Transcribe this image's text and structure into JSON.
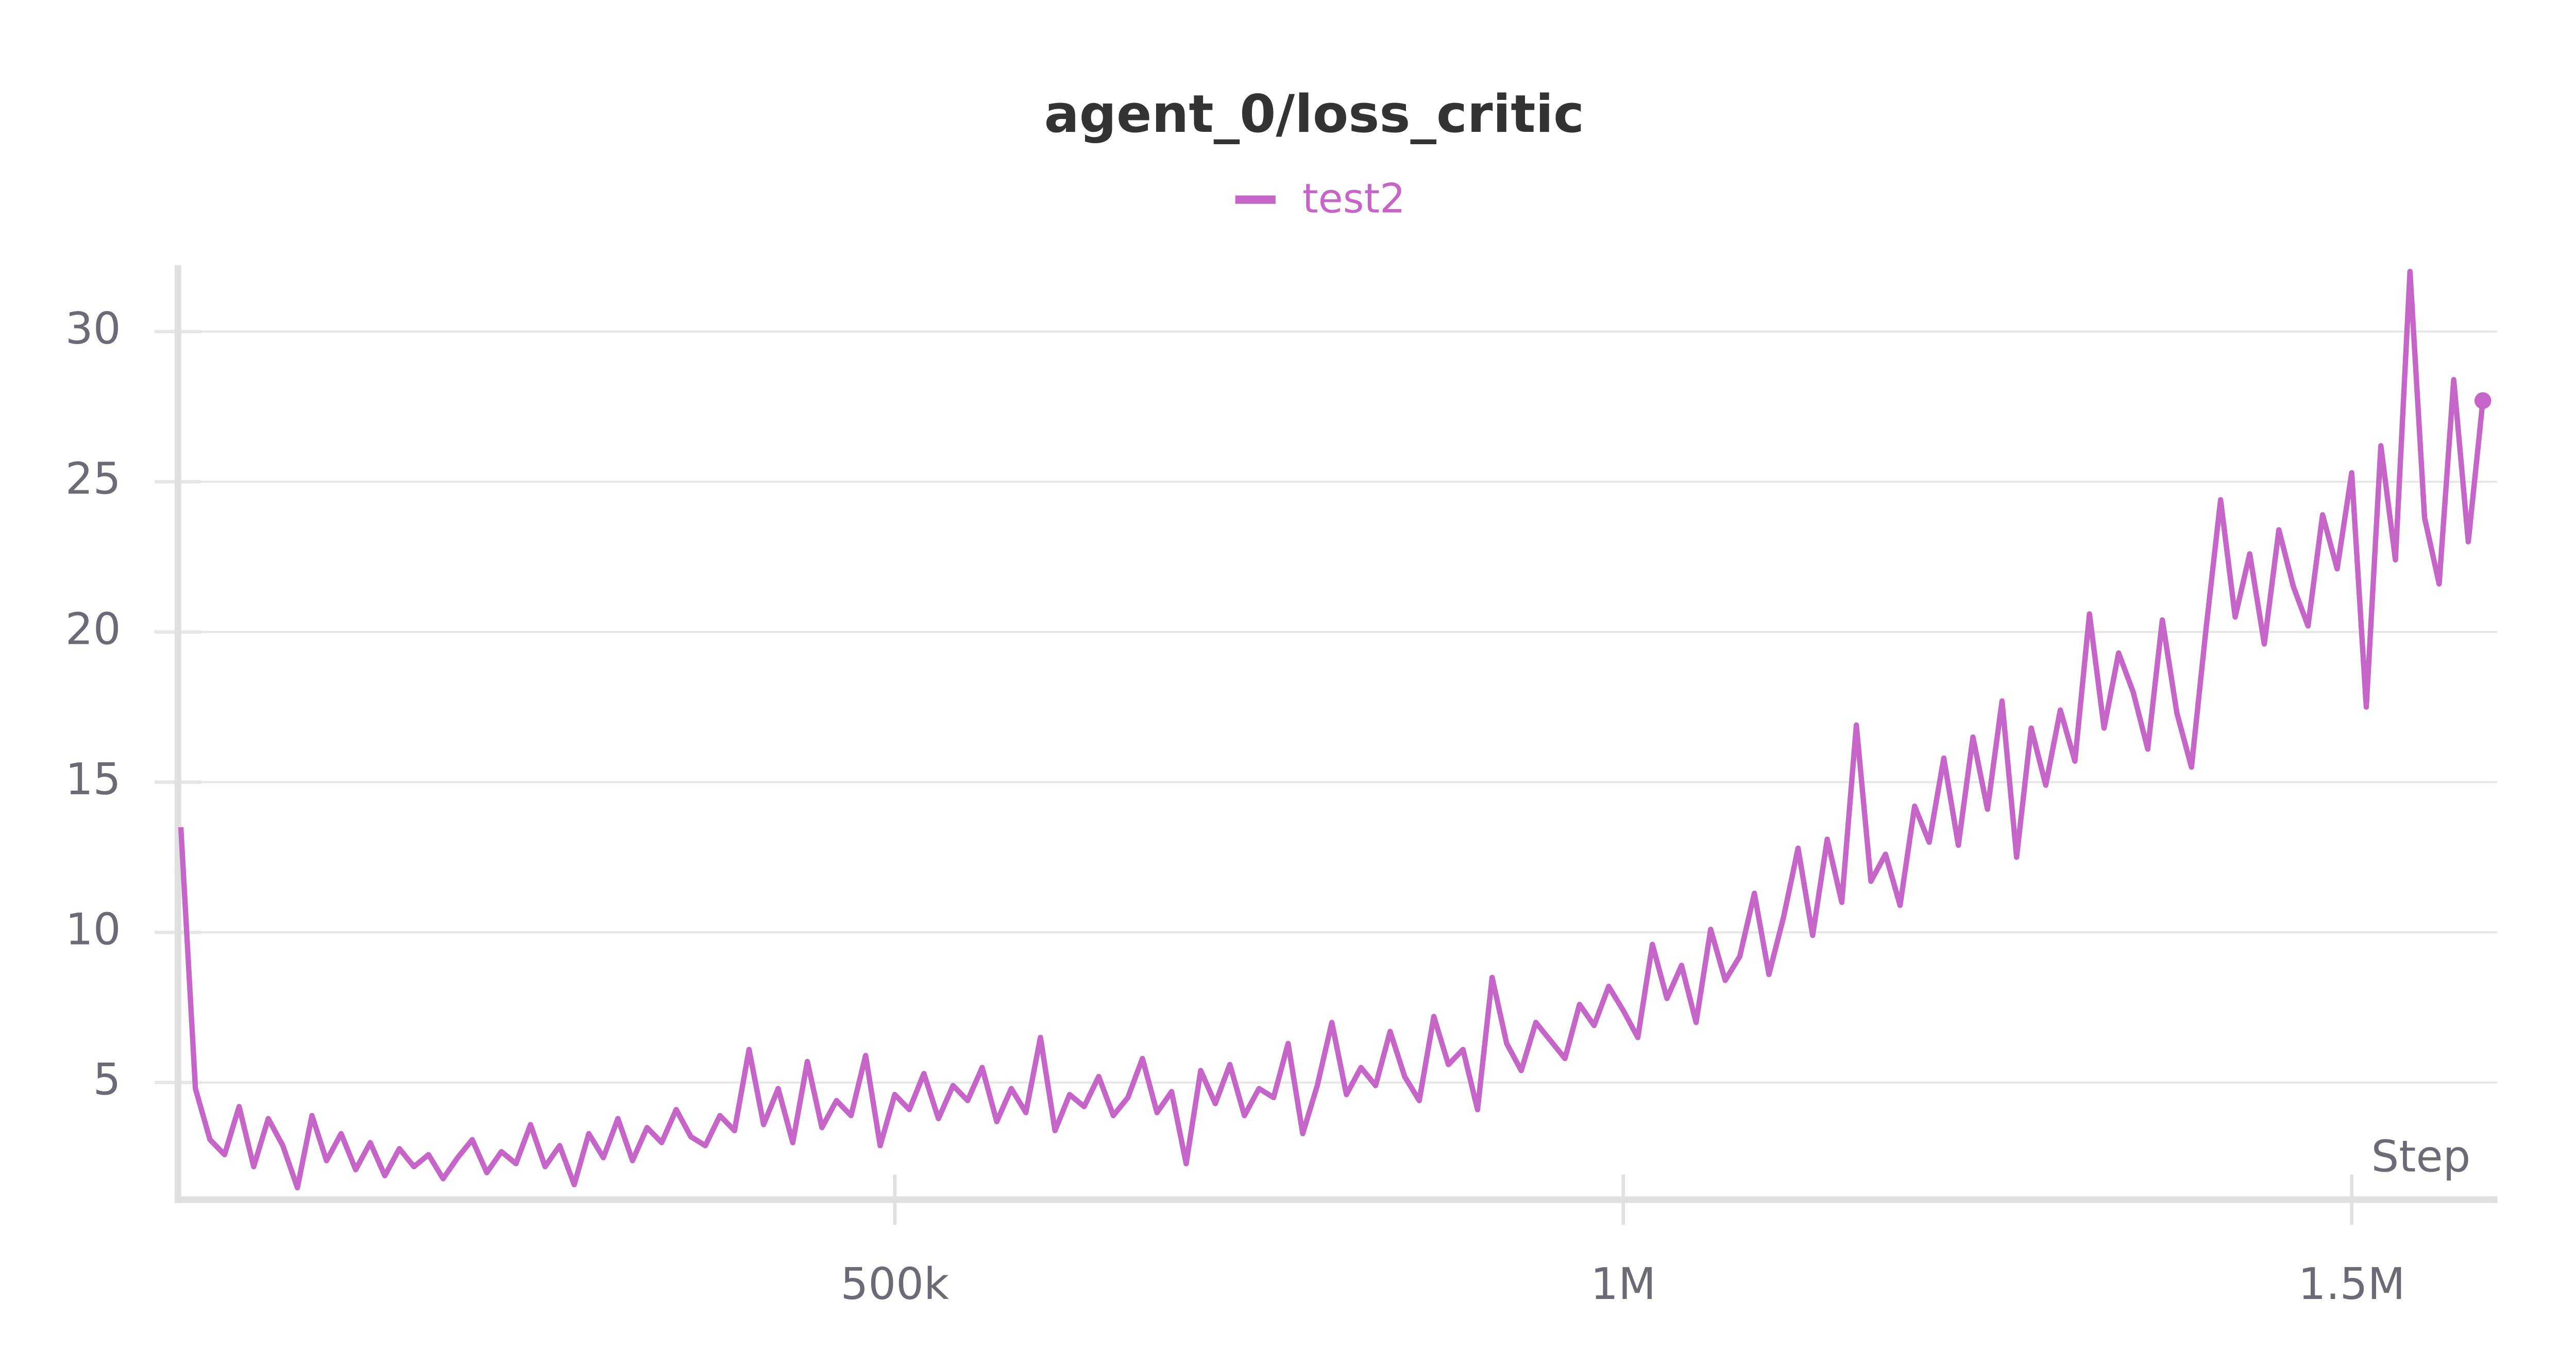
{
  "chart_data": {
    "type": "line",
    "title": "agent_0/loss_critic",
    "x_label": "Step",
    "x": [
      10000,
      20000,
      30000,
      40000,
      50000,
      60000,
      70000,
      80000,
      90000,
      100000,
      110000,
      120000,
      130000,
      140000,
      150000,
      160000,
      170000,
      180000,
      190000,
      200000,
      210000,
      220000,
      230000,
      240000,
      250000,
      260000,
      270000,
      280000,
      290000,
      300000,
      310000,
      320000,
      330000,
      340000,
      350000,
      360000,
      370000,
      380000,
      390000,
      400000,
      410000,
      420000,
      430000,
      440000,
      450000,
      460000,
      470000,
      480000,
      490000,
      500000,
      510000,
      520000,
      530000,
      540000,
      550000,
      560000,
      570000,
      580000,
      590000,
      600000,
      610000,
      620000,
      630000,
      640000,
      650000,
      660000,
      670000,
      680000,
      690000,
      700000,
      710000,
      720000,
      730000,
      740000,
      750000,
      760000,
      770000,
      780000,
      790000,
      800000,
      810000,
      820000,
      830000,
      840000,
      850000,
      860000,
      870000,
      880000,
      890000,
      900000,
      910000,
      920000,
      930000,
      940000,
      950000,
      960000,
      970000,
      980000,
      990000,
      1000000,
      1010000,
      1020000,
      1030000,
      1040000,
      1050000,
      1060000,
      1070000,
      1080000,
      1090000,
      1100000,
      1110000,
      1120000,
      1130000,
      1140000,
      1150000,
      1160000,
      1170000,
      1180000,
      1190000,
      1200000,
      1210000,
      1220000,
      1230000,
      1240000,
      1250000,
      1260000,
      1270000,
      1280000,
      1290000,
      1300000,
      1310000,
      1320000,
      1330000,
      1340000,
      1350000,
      1360000,
      1370000,
      1380000,
      1390000,
      1400000,
      1410000,
      1420000,
      1430000,
      1440000,
      1450000,
      1460000,
      1470000,
      1480000,
      1490000,
      1500000,
      1510000,
      1520000,
      1530000,
      1540000,
      1550000,
      1560000,
      1570000,
      1580000,
      1590000
    ],
    "series": [
      {
        "name": "test2",
        "color": "#c565c7",
        "values": [
          13.5,
          4.8,
          3.1,
          2.6,
          4.2,
          2.2,
          3.8,
          2.9,
          1.5,
          3.9,
          2.4,
          3.3,
          2.1,
          3.0,
          1.9,
          2.8,
          2.2,
          2.6,
          1.8,
          2.5,
          3.1,
          2.0,
          2.7,
          2.3,
          3.6,
          2.2,
          2.9,
          1.6,
          3.3,
          2.5,
          3.8,
          2.4,
          3.5,
          3.0,
          4.1,
          3.2,
          2.9,
          3.9,
          3.4,
          6.1,
          3.6,
          4.8,
          3.0,
          5.7,
          3.5,
          4.4,
          3.9,
          5.9,
          2.9,
          4.6,
          4.1,
          5.3,
          3.8,
          4.9,
          4.4,
          5.5,
          3.7,
          4.8,
          4.0,
          6.5,
          3.4,
          4.6,
          4.2,
          5.2,
          3.9,
          4.5,
          5.8,
          4.0,
          4.7,
          2.3,
          5.4,
          4.3,
          5.6,
          3.9,
          4.8,
          4.5,
          6.3,
          3.3,
          4.9,
          7.0,
          4.6,
          5.5,
          4.9,
          6.7,
          5.2,
          4.4,
          7.2,
          5.6,
          6.1,
          4.1,
          8.5,
          6.3,
          5.4,
          7.0,
          6.4,
          5.8,
          7.6,
          6.9,
          8.2,
          7.4,
          6.5,
          9.6,
          7.8,
          8.9,
          7.0,
          10.1,
          8.4,
          9.2,
          11.3,
          8.6,
          10.5,
          12.8,
          9.9,
          13.1,
          11.0,
          16.9,
          11.7,
          12.6,
          10.9,
          14.2,
          13.0,
          15.8,
          12.9,
          16.5,
          14.1,
          17.7,
          12.5,
          16.8,
          14.9,
          17.4,
          15.7,
          20.6,
          16.8,
          19.3,
          18.0,
          16.1,
          20.4,
          17.3,
          15.5,
          20.1,
          24.4,
          20.5,
          22.6,
          19.6,
          23.4,
          21.5,
          20.2,
          23.9,
          22.1,
          25.3,
          17.5,
          26.2,
          22.4,
          32.0,
          23.8,
          21.6,
          28.4,
          23.0,
          27.7
        ]
      }
    ],
    "xlim": [
      8000,
      1600000
    ],
    "xticks": [
      {
        "value": 500000,
        "label": "500k"
      },
      {
        "value": 1000000,
        "label": "1M"
      },
      {
        "value": 1500000,
        "label": "1.5M"
      }
    ],
    "ylim": [
      1.1,
      32.1
    ],
    "yticks": [
      5,
      10,
      15,
      20,
      25,
      30
    ],
    "grid": true
  }
}
